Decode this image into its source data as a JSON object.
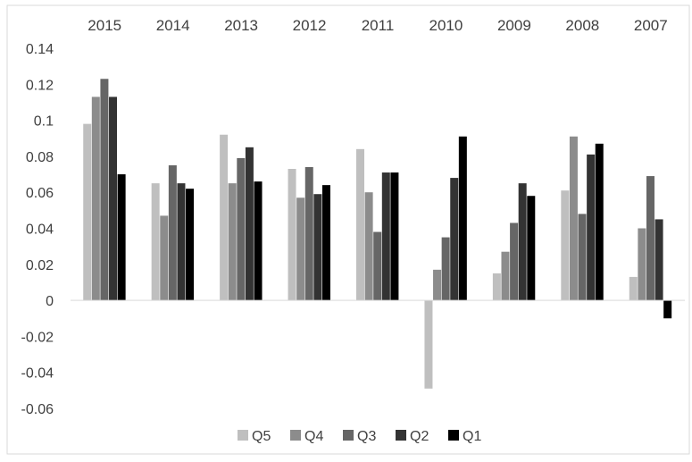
{
  "chart_data": {
    "type": "bar",
    "categories": [
      "2015",
      "2014",
      "2013",
      "2012",
      "2011",
      "2010",
      "2009",
      "2008",
      "2007"
    ],
    "series": [
      {
        "name": "Q5",
        "color": "#bfbfbf",
        "values": [
          0.098,
          0.065,
          0.092,
          0.073,
          0.084,
          -0.049,
          0.015,
          0.061,
          0.013
        ]
      },
      {
        "name": "Q4",
        "color": "#8c8c8c",
        "values": [
          0.113,
          0.047,
          0.065,
          0.057,
          0.06,
          0.017,
          0.027,
          0.091,
          0.04
        ]
      },
      {
        "name": "Q3",
        "color": "#666666",
        "values": [
          0.123,
          0.075,
          0.079,
          0.074,
          0.038,
          0.035,
          0.043,
          0.048,
          0.069
        ]
      },
      {
        "name": "Q2",
        "color": "#333333",
        "values": [
          0.113,
          0.065,
          0.085,
          0.059,
          0.071,
          0.068,
          0.065,
          0.081,
          0.045
        ]
      },
      {
        "name": "Q1",
        "color": "#000000",
        "values": [
          0.07,
          0.062,
          0.066,
          0.064,
          0.071,
          0.091,
          0.058,
          0.087,
          -0.01
        ]
      }
    ],
    "yticks": [
      "0.14",
      "0.12",
      "0.1",
      "0.08",
      "0.06",
      "0.04",
      "0.02",
      "0",
      "-0.02",
      "-0.04",
      "-0.06"
    ],
    "ylim": [
      -0.06,
      0.14
    ],
    "category_labels_position": "top",
    "legend": {
      "position": "bottom"
    },
    "grid": false,
    "title": "",
    "xlabel": "",
    "ylabel": ""
  }
}
